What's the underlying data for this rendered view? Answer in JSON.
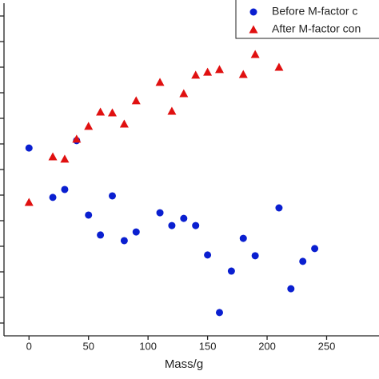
{
  "chart_data": {
    "type": "scatter",
    "x_label": "Mass/g",
    "xlim": [
      -21,
      294
    ],
    "xticks": [
      0,
      50,
      100,
      150,
      200,
      250
    ],
    "ylim": [
      -0.5,
      12.5
    ],
    "yticks": [
      0,
      1,
      2,
      3,
      4,
      5,
      6,
      7,
      8,
      9,
      10,
      11,
      12
    ],
    "ytick_labels": false,
    "legend": "upper right",
    "series": [
      {
        "name": "Before M-factor c",
        "color": "#0a1fd0",
        "marker": "circle",
        "x": [
          0,
          20,
          30,
          40,
          50,
          60,
          70,
          80,
          90,
          110,
          120,
          130,
          140,
          150,
          160,
          170,
          180,
          190,
          210,
          220,
          230,
          240
        ],
        "values": [
          6.84,
          4.91,
          5.22,
          7.13,
          4.22,
          3.44,
          4.97,
          3.22,
          3.56,
          4.31,
          3.81,
          4.09,
          3.81,
          2.66,
          0.41,
          2.03,
          3.31,
          2.63,
          4.5,
          1.34,
          2.41,
          2.91
        ]
      },
      {
        "name": "After M-factor con",
        "color": "#e01010",
        "marker": "triangle",
        "x": [
          0,
          20,
          30,
          40,
          50,
          60,
          70,
          80,
          90,
          110,
          120,
          130,
          140,
          150,
          160,
          180,
          190,
          210
        ],
        "values": [
          4.72,
          6.5,
          6.41,
          7.19,
          7.69,
          8.25,
          8.22,
          7.78,
          8.69,
          9.41,
          8.28,
          8.97,
          9.69,
          9.81,
          9.91,
          9.72,
          10.5,
          10.0
        ]
      }
    ]
  }
}
